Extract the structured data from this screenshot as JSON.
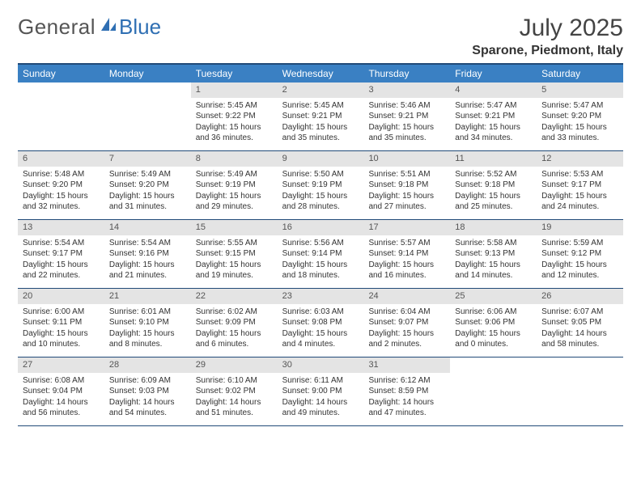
{
  "brand": {
    "text1": "General",
    "text2": "Blue"
  },
  "header": {
    "month_title": "July 2025",
    "location": "Sparone, Piedmont, Italy"
  },
  "colors": {
    "header_band": "#3a80c3",
    "row_border": "#214a78",
    "daynum_bg": "#e4e4e4",
    "brand_blue": "#2f6fb3",
    "text": "#333333",
    "muted": "#555555"
  },
  "weekdays": [
    "Sunday",
    "Monday",
    "Tuesday",
    "Wednesday",
    "Thursday",
    "Friday",
    "Saturday"
  ],
  "weeks": [
    [
      null,
      null,
      {
        "n": "1",
        "sr": "5:45 AM",
        "ss": "9:22 PM",
        "dl": "15 hours and 36 minutes."
      },
      {
        "n": "2",
        "sr": "5:45 AM",
        "ss": "9:21 PM",
        "dl": "15 hours and 35 minutes."
      },
      {
        "n": "3",
        "sr": "5:46 AM",
        "ss": "9:21 PM",
        "dl": "15 hours and 35 minutes."
      },
      {
        "n": "4",
        "sr": "5:47 AM",
        "ss": "9:21 PM",
        "dl": "15 hours and 34 minutes."
      },
      {
        "n": "5",
        "sr": "5:47 AM",
        "ss": "9:20 PM",
        "dl": "15 hours and 33 minutes."
      }
    ],
    [
      {
        "n": "6",
        "sr": "5:48 AM",
        "ss": "9:20 PM",
        "dl": "15 hours and 32 minutes."
      },
      {
        "n": "7",
        "sr": "5:49 AM",
        "ss": "9:20 PM",
        "dl": "15 hours and 31 minutes."
      },
      {
        "n": "8",
        "sr": "5:49 AM",
        "ss": "9:19 PM",
        "dl": "15 hours and 29 minutes."
      },
      {
        "n": "9",
        "sr": "5:50 AM",
        "ss": "9:19 PM",
        "dl": "15 hours and 28 minutes."
      },
      {
        "n": "10",
        "sr": "5:51 AM",
        "ss": "9:18 PM",
        "dl": "15 hours and 27 minutes."
      },
      {
        "n": "11",
        "sr": "5:52 AM",
        "ss": "9:18 PM",
        "dl": "15 hours and 25 minutes."
      },
      {
        "n": "12",
        "sr": "5:53 AM",
        "ss": "9:17 PM",
        "dl": "15 hours and 24 minutes."
      }
    ],
    [
      {
        "n": "13",
        "sr": "5:54 AM",
        "ss": "9:17 PM",
        "dl": "15 hours and 22 minutes."
      },
      {
        "n": "14",
        "sr": "5:54 AM",
        "ss": "9:16 PM",
        "dl": "15 hours and 21 minutes."
      },
      {
        "n": "15",
        "sr": "5:55 AM",
        "ss": "9:15 PM",
        "dl": "15 hours and 19 minutes."
      },
      {
        "n": "16",
        "sr": "5:56 AM",
        "ss": "9:14 PM",
        "dl": "15 hours and 18 minutes."
      },
      {
        "n": "17",
        "sr": "5:57 AM",
        "ss": "9:14 PM",
        "dl": "15 hours and 16 minutes."
      },
      {
        "n": "18",
        "sr": "5:58 AM",
        "ss": "9:13 PM",
        "dl": "15 hours and 14 minutes."
      },
      {
        "n": "19",
        "sr": "5:59 AM",
        "ss": "9:12 PM",
        "dl": "15 hours and 12 minutes."
      }
    ],
    [
      {
        "n": "20",
        "sr": "6:00 AM",
        "ss": "9:11 PM",
        "dl": "15 hours and 10 minutes."
      },
      {
        "n": "21",
        "sr": "6:01 AM",
        "ss": "9:10 PM",
        "dl": "15 hours and 8 minutes."
      },
      {
        "n": "22",
        "sr": "6:02 AM",
        "ss": "9:09 PM",
        "dl": "15 hours and 6 minutes."
      },
      {
        "n": "23",
        "sr": "6:03 AM",
        "ss": "9:08 PM",
        "dl": "15 hours and 4 minutes."
      },
      {
        "n": "24",
        "sr": "6:04 AM",
        "ss": "9:07 PM",
        "dl": "15 hours and 2 minutes."
      },
      {
        "n": "25",
        "sr": "6:06 AM",
        "ss": "9:06 PM",
        "dl": "15 hours and 0 minutes."
      },
      {
        "n": "26",
        "sr": "6:07 AM",
        "ss": "9:05 PM",
        "dl": "14 hours and 58 minutes."
      }
    ],
    [
      {
        "n": "27",
        "sr": "6:08 AM",
        "ss": "9:04 PM",
        "dl": "14 hours and 56 minutes."
      },
      {
        "n": "28",
        "sr": "6:09 AM",
        "ss": "9:03 PM",
        "dl": "14 hours and 54 minutes."
      },
      {
        "n": "29",
        "sr": "6:10 AM",
        "ss": "9:02 PM",
        "dl": "14 hours and 51 minutes."
      },
      {
        "n": "30",
        "sr": "6:11 AM",
        "ss": "9:00 PM",
        "dl": "14 hours and 49 minutes."
      },
      {
        "n": "31",
        "sr": "6:12 AM",
        "ss": "8:59 PM",
        "dl": "14 hours and 47 minutes."
      },
      null,
      null
    ]
  ],
  "labels": {
    "sunrise": "Sunrise:",
    "sunset": "Sunset:",
    "daylight": "Daylight:"
  }
}
